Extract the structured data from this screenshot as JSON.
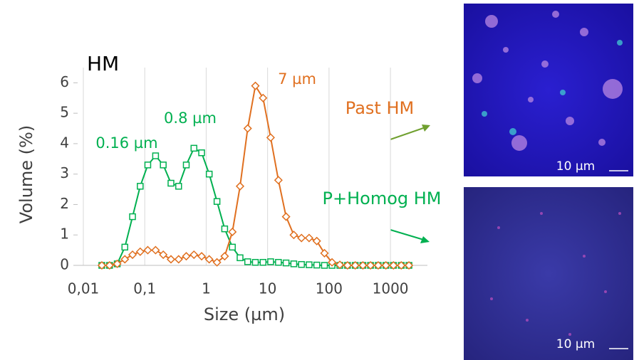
{
  "chart_data": {
    "type": "line",
    "title": "HM",
    "x_label": "Size (µm)",
    "y_label": "Volume (%)",
    "log_x": true,
    "xlim": [
      0.01,
      4000
    ],
    "ylim": [
      0,
      6.5
    ],
    "xticks": [
      {
        "value": 0.01,
        "label": "0,01"
      },
      {
        "value": 0.1,
        "label": "0,1"
      },
      1,
      10,
      100,
      1000
    ],
    "yticks": [
      0,
      1,
      2,
      3,
      4,
      5,
      6
    ],
    "grid": true,
    "x": [
      0.02,
      0.0267,
      0.0356,
      0.0474,
      0.0632,
      0.0843,
      0.112,
      0.15,
      0.2,
      0.267,
      0.356,
      0.474,
      0.632,
      0.843,
      1.12,
      1.5,
      2,
      2.67,
      3.56,
      4.74,
      6.32,
      8.43,
      11.2,
      15,
      20,
      26.7,
      35.6,
      47.4,
      63.2,
      84.3,
      112,
      150,
      200,
      267,
      356,
      474,
      632,
      843,
      1120,
      1500,
      2000
    ],
    "series": [
      {
        "name": "P+Homog HM",
        "color": "#00b050",
        "marker": "square",
        "values": [
          0,
          0,
          0.05,
          0.6,
          1.6,
          2.6,
          3.3,
          3.6,
          3.3,
          2.7,
          2.6,
          3.3,
          3.85,
          3.7,
          3.0,
          2.1,
          1.2,
          0.6,
          0.25,
          0.12,
          0.1,
          0.1,
          0.12,
          0.1,
          0.08,
          0.05,
          0.03,
          0.02,
          0.01,
          0,
          0,
          0,
          0,
          0,
          0,
          0,
          0,
          0,
          0,
          0,
          0
        ]
      },
      {
        "name": "Past HM",
        "color": "#e07020",
        "marker": "diamond",
        "values": [
          0,
          0,
          0.05,
          0.2,
          0.35,
          0.45,
          0.5,
          0.5,
          0.35,
          0.2,
          0.2,
          0.3,
          0.35,
          0.3,
          0.2,
          0.1,
          0.3,
          1.1,
          2.6,
          4.5,
          5.9,
          5.5,
          4.2,
          2.8,
          1.6,
          1.0,
          0.9,
          0.9,
          0.8,
          0.4,
          0.1,
          0.02,
          0,
          0,
          0,
          0,
          0,
          0,
          0,
          0,
          0
        ]
      }
    ],
    "annotations": [
      {
        "text": "0.16 µm",
        "color": "#00b050"
      },
      {
        "text": "0.8 µm",
        "color": "#00b050"
      },
      {
        "text": "7 µm",
        "color": "#e07020"
      }
    ]
  },
  "images": [
    {
      "scale_label": "10 µm"
    },
    {
      "scale_label": "10 µm"
    }
  ]
}
